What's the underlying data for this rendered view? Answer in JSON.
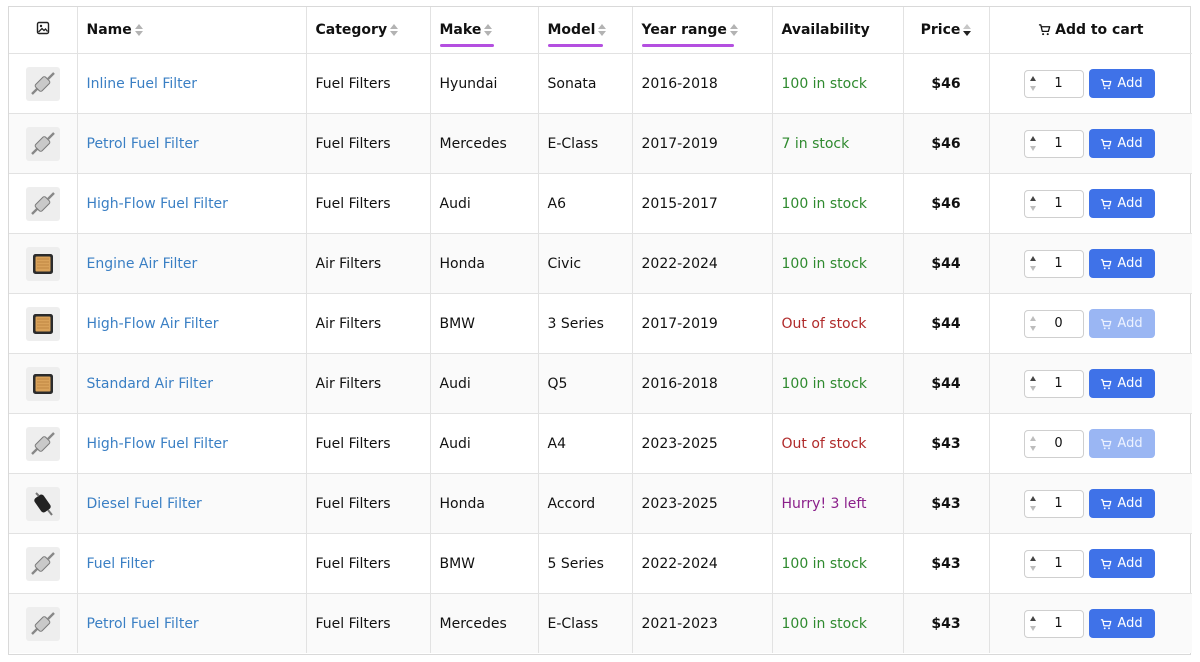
{
  "columns": {
    "image_icon": "image-icon",
    "name": "Name",
    "category": "Category",
    "make": "Make",
    "model": "Model",
    "year_range": "Year range",
    "availability": "Availability",
    "price": "Price",
    "add_to_cart": "Add to cart"
  },
  "sort": {
    "active_column": "Price",
    "direction": "descending"
  },
  "highlighted_columns": [
    "Make",
    "Model",
    "Year range"
  ],
  "colors": {
    "accent_underline": "#b44fe0",
    "link": "#3a7fc4",
    "in_stock": "#2f8a2f",
    "out_of_stock": "#b02a2a",
    "hurry": "#8a1f8a",
    "button": "#3f72e8"
  },
  "rows": [
    {
      "thumb": "fuel-filter-icon",
      "name": "Inline Fuel Filter",
      "category": "Fuel Filters",
      "make": "Hyundai",
      "model": "Sonata",
      "years": "2016-2018",
      "availability": "100 in stock",
      "status": "in",
      "price": "$46",
      "qty": "1",
      "add": "Add"
    },
    {
      "thumb": "fuel-filter-icon",
      "name": "Petrol Fuel Filter",
      "category": "Fuel Filters",
      "make": "Mercedes",
      "model": "E-Class",
      "years": "2017-2019",
      "availability": "7 in stock",
      "status": "in",
      "price": "$46",
      "qty": "1",
      "add": "Add"
    },
    {
      "thumb": "fuel-filter-icon",
      "name": "High-Flow Fuel Filter",
      "category": "Fuel Filters",
      "make": "Audi",
      "model": "A6",
      "years": "2015-2017",
      "availability": "100 in stock",
      "status": "in",
      "price": "$46",
      "qty": "1",
      "add": "Add"
    },
    {
      "thumb": "air-filter-icon",
      "name": "Engine Air Filter",
      "category": "Air Filters",
      "make": "Honda",
      "model": "Civic",
      "years": "2022-2024",
      "availability": "100 in stock",
      "status": "in",
      "price": "$44",
      "qty": "1",
      "add": "Add"
    },
    {
      "thumb": "air-filter-icon",
      "name": "High-Flow Air Filter",
      "category": "Air Filters",
      "make": "BMW",
      "model": "3 Series",
      "years": "2017-2019",
      "availability": "Out of stock",
      "status": "out",
      "price": "$44",
      "qty": "0",
      "add": "Add"
    },
    {
      "thumb": "air-filter-icon",
      "name": "Standard Air Filter",
      "category": "Air Filters",
      "make": "Audi",
      "model": "Q5",
      "years": "2016-2018",
      "availability": "100 in stock",
      "status": "in",
      "price": "$44",
      "qty": "1",
      "add": "Add"
    },
    {
      "thumb": "fuel-filter-icon",
      "name": "High-Flow Fuel Filter",
      "category": "Fuel Filters",
      "make": "Audi",
      "model": "A4",
      "years": "2023-2025",
      "availability": "Out of stock",
      "status": "out",
      "price": "$43",
      "qty": "0",
      "add": "Add"
    },
    {
      "thumb": "diesel-filter-icon",
      "name": "Diesel Fuel Filter",
      "category": "Fuel Filters",
      "make": "Honda",
      "model": "Accord",
      "years": "2023-2025",
      "availability": "Hurry! 3 left",
      "status": "hurry",
      "price": "$43",
      "qty": "1",
      "add": "Add"
    },
    {
      "thumb": "fuel-filter-icon",
      "name": "Fuel Filter",
      "category": "Fuel Filters",
      "make": "BMW",
      "model": "5 Series",
      "years": "2022-2024",
      "availability": "100 in stock",
      "status": "in",
      "price": "$43",
      "qty": "1",
      "add": "Add"
    },
    {
      "thumb": "fuel-filter-icon",
      "name": "Petrol Fuel Filter",
      "category": "Fuel Filters",
      "make": "Mercedes",
      "model": "E-Class",
      "years": "2021-2023",
      "availability": "100 in stock",
      "status": "in",
      "price": "$43",
      "qty": "1",
      "add": "Add"
    }
  ]
}
